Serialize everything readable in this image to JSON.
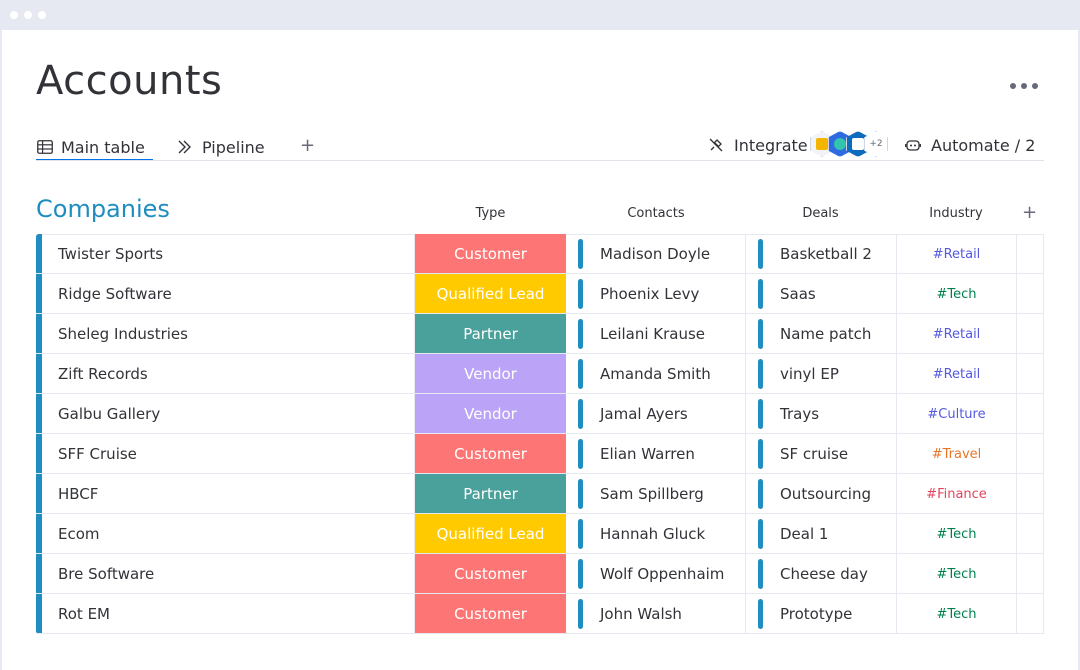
{
  "page": {
    "title": "Accounts"
  },
  "tabs": [
    {
      "label": "Main table",
      "icon": "table-icon",
      "active": true
    },
    {
      "label": "Pipeline",
      "icon": "pipeline-icon",
      "active": false
    }
  ],
  "tab_add_label": "+",
  "toolbar": {
    "integrate_label": "Integrate",
    "integration_extra_count": "+2",
    "automate_label": "Automate / 2"
  },
  "group": {
    "title": "Companies",
    "color": "#1f8dbf"
  },
  "columns": {
    "type": "Type",
    "contacts": "Contacts",
    "deals": "Deals",
    "industry": "Industry",
    "add": "+"
  },
  "type_colors": {
    "Customer": "#fd7575",
    "Qualified Lead": "#ffcb00",
    "Partner": "#4aa19b",
    "Vendor": "#bba4f7"
  },
  "industry_colors": {
    "#Retail": "#5559df",
    "#Tech": "#037f4c",
    "#Culture": "#5559df",
    "#Travel": "#e8762a",
    "#Finance": "#e2445c"
  },
  "rows": [
    {
      "name": "Twister Sports",
      "type": "Customer",
      "contact": "Madison Doyle",
      "deal": "Basketball 2",
      "industry": "#Retail"
    },
    {
      "name": "Ridge Software",
      "type": "Qualified Lead",
      "contact": "Phoenix Levy",
      "deal": "Saas",
      "industry": "#Tech"
    },
    {
      "name": "Sheleg Industries",
      "type": "Partner",
      "contact": "Leilani Krause",
      "deal": "Name patch",
      "industry": "#Retail"
    },
    {
      "name": "Zift Records",
      "type": "Vendor",
      "contact": "Amanda Smith",
      "deal": "vinyl EP",
      "industry": "#Retail"
    },
    {
      "name": "Galbu Gallery",
      "type": "Vendor",
      "contact": "Jamal Ayers",
      "deal": "Trays",
      "industry": "#Culture"
    },
    {
      "name": "SFF Cruise",
      "type": "Customer",
      "contact": "Elian Warren",
      "deal": "SF cruise",
      "industry": "#Travel"
    },
    {
      "name": "HBCF",
      "type": "Partner",
      "contact": "Sam Spillberg",
      "deal": "Outsourcing",
      "industry": "#Finance"
    },
    {
      "name": "Ecom",
      "type": "Qualified Lead",
      "contact": "Hannah Gluck",
      "deal": "Deal 1",
      "industry": "#Tech"
    },
    {
      "name": "Bre Software",
      "type": "Customer",
      "contact": "Wolf Oppenhaim",
      "deal": "Cheese day",
      "industry": "#Tech"
    },
    {
      "name": "Rot EM",
      "type": "Customer",
      "contact": "John Walsh",
      "deal": "Prototype",
      "industry": "#Tech"
    }
  ]
}
